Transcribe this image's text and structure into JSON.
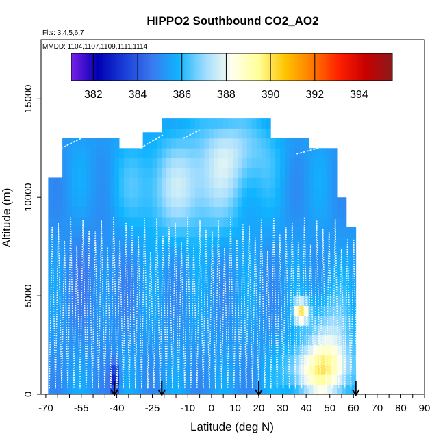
{
  "chart_data": {
    "type": "heatmap",
    "title": "HIPPO2 Southbound CO2_AO2",
    "subtitle_flights": "Flts: 3,4,5,6,7",
    "subtitle_dates": "MMDD: 1104,1107,1109,1111,1114",
    "xlabel": "Latitude (deg N)",
    "ylabel": "Altitude (m)",
    "xlim": [
      -72,
      90
    ],
    "ylim": [
      0,
      18000
    ],
    "x_ticks": [
      -70,
      -55,
      -40,
      -25,
      -10,
      0,
      10,
      20,
      30,
      40,
      50,
      60,
      70,
      80,
      90
    ],
    "x_minor_ticks": [
      -65,
      -60,
      -50,
      -45,
      -35,
      -30,
      -20,
      -15,
      -5,
      5,
      15,
      25,
      35,
      45,
      55,
      65,
      75,
      85
    ],
    "y_ticks": [
      0,
      5000,
      10000,
      15000
    ],
    "colorbar": {
      "min": 381,
      "max": 395.5,
      "ticks": [
        382,
        384,
        386,
        388,
        390,
        392,
        394
      ],
      "colors": [
        "#7a1fe6",
        "#0000b4",
        "#1a3ed8",
        "#3a78ee",
        "#0fb4ff",
        "#9fdcff",
        "#ffffee",
        "#ffff99",
        "#ffc400",
        "#ff7a00",
        "#ff2000",
        "#c80000",
        "#8b1a1a"
      ]
    },
    "flight_markers_lat": [
      -41,
      -21,
      20,
      61
    ],
    "field": {
      "lat_range": [
        -69,
        61
      ],
      "alt_range": [
        0,
        14000
      ],
      "base_value": 385.3,
      "features": [
        {
          "lat": -10,
          "alt": 10500,
          "dlat": 25,
          "dalt": 2500,
          "value": 387.3
        },
        {
          "lat": 10,
          "alt": 12500,
          "dlat": 15,
          "dalt": 1800,
          "value": 386.8
        },
        {
          "lat": 45,
          "alt": 1200,
          "dlat": 13,
          "dalt": 1300,
          "value": 388.4
        },
        {
          "lat": 38,
          "alt": 4200,
          "dlat": 3,
          "dalt": 600,
          "value": 389.6
        },
        {
          "lat": 50,
          "alt": 2500,
          "dlat": 9,
          "dalt": 2500,
          "value": 387.4
        },
        {
          "lat": -41,
          "alt": 800,
          "dlat": 2,
          "dalt": 800,
          "value": 382.4
        },
        {
          "lat": -50,
          "alt": 6000,
          "dlat": 15,
          "dalt": 3500,
          "value": 384.9
        }
      ]
    }
  }
}
